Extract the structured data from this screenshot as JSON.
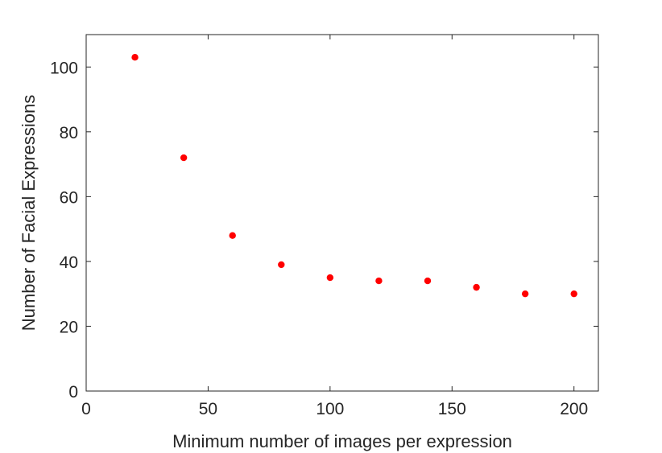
{
  "chart_data": {
    "type": "scatter",
    "title": "",
    "xlabel": "Minimum number of images per expression",
    "ylabel": "Number of Facial Expressions",
    "xlim": [
      0,
      210
    ],
    "ylim": [
      0,
      110
    ],
    "xticks": [
      0,
      50,
      100,
      150,
      200
    ],
    "yticks": [
      0,
      20,
      40,
      60,
      80,
      100
    ],
    "grid": false,
    "marker_color": "#ff0000",
    "x": [
      20,
      40,
      60,
      80,
      100,
      120,
      140,
      160,
      180,
      200
    ],
    "y": [
      103,
      72,
      48,
      39,
      35,
      34,
      34,
      32,
      30,
      30
    ]
  }
}
